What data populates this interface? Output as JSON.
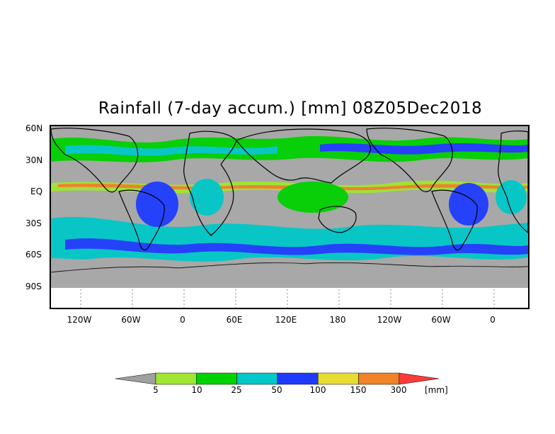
{
  "title": "Rainfall (7-day accum.) [mm] 08Z05Dec2018",
  "lat_labels": [
    "60N",
    "30N",
    "EQ",
    "30S",
    "60S",
    "90S"
  ],
  "lon_labels": [
    "120W",
    "60W",
    "0",
    "60E",
    "120E",
    "180",
    "120W",
    "60W",
    "0"
  ],
  "colorbar": {
    "ticks": [
      "5",
      "10",
      "25",
      "50",
      "100",
      "150",
      "300"
    ],
    "unit": "[mm]",
    "colors": [
      "#a0a0a0",
      "#a0e632",
      "#00d200",
      "#00c8c8",
      "#1e3cff",
      "#e6dc32",
      "#f08228",
      "#fa3c3c"
    ]
  },
  "colors": {
    "no_rain": "#a8a8a8",
    "outline": "#000000"
  }
}
